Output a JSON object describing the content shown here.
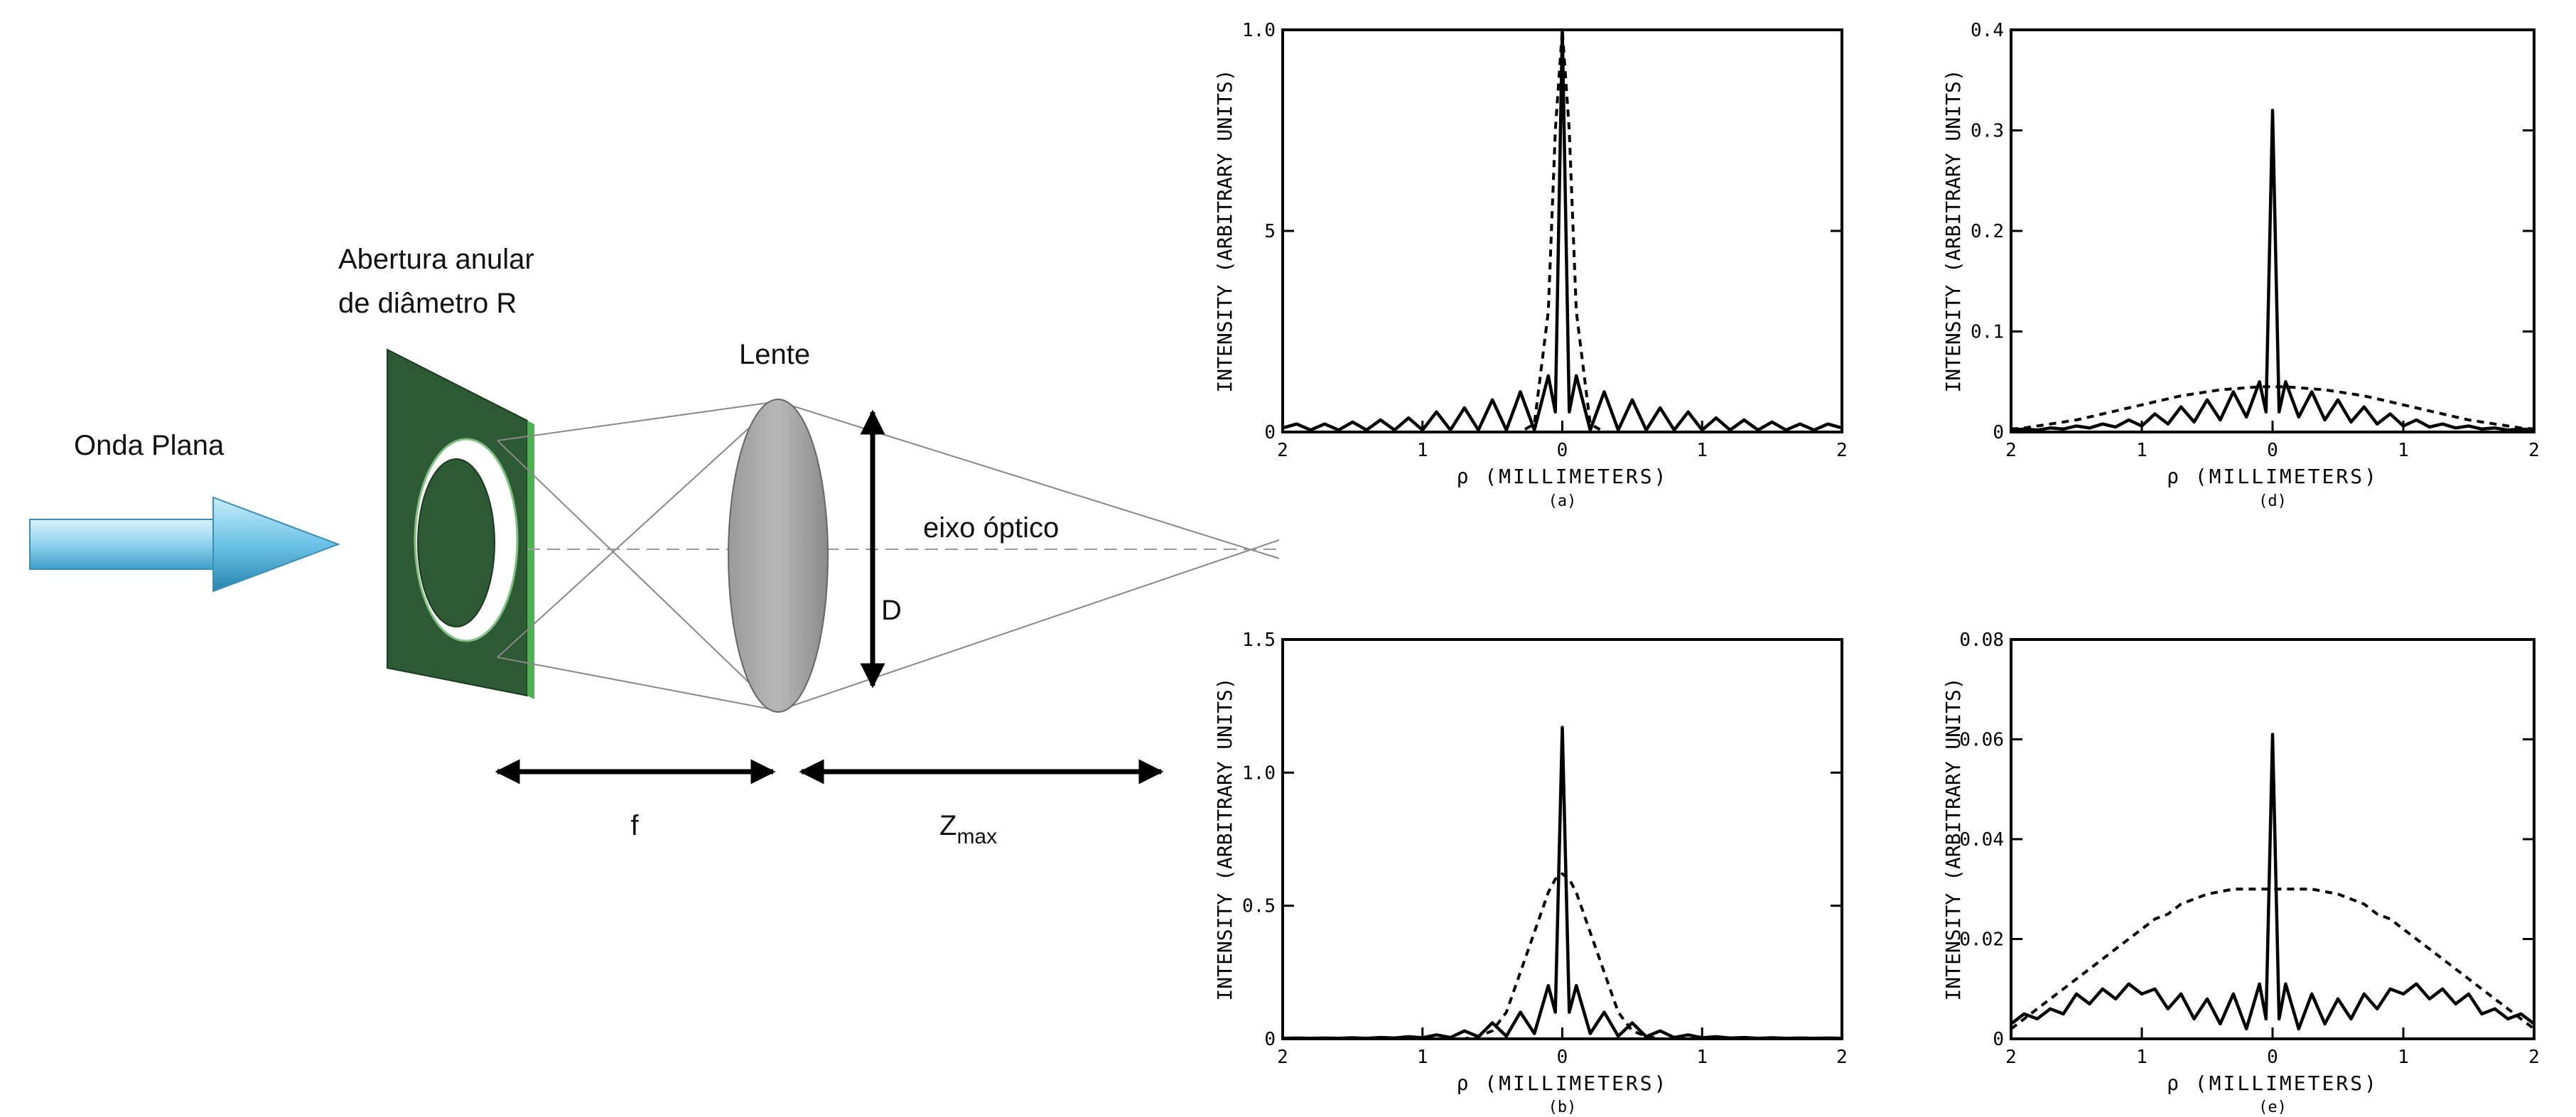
{
  "diagram": {
    "wave_label": "Onda Plana",
    "aperture_label": [
      "Abertura anular",
      "de diâmetro R"
    ],
    "lens_label": "Lente",
    "diameter_label": "D",
    "axis_label": "eixo óptico",
    "focal_label": "f",
    "zmax_label": "Z",
    "zmax_subscript": "max"
  },
  "chart_data": [
    {
      "type": "line",
      "caption": "(a)",
      "x_label": "ρ (MILLIMETERS)",
      "y_label": "INTENSITY (ARBITRARY UNITS)",
      "x": [
        -2,
        -1.9,
        -1.8,
        -1.7,
        -1.6,
        -1.5,
        -1.4,
        -1.3,
        -1.2,
        -1.1,
        -1,
        -0.9,
        -0.8,
        -0.7,
        -0.6,
        -0.5,
        -0.4,
        -0.3,
        -0.2,
        -0.1,
        -0.05,
        0,
        0.05,
        0.1,
        0.2,
        0.3,
        0.4,
        0.5,
        0.6,
        0.7,
        0.8,
        0.9,
        1,
        1.1,
        1.2,
        1.3,
        1.4,
        1.5,
        1.6,
        1.7,
        1.8,
        1.9,
        2
      ],
      "series": [
        {
          "color": "#000000",
          "dashed": false,
          "values": [
            0.01,
            0.02,
            0.005,
            0.02,
            0.005,
            0.025,
            0.005,
            0.03,
            0.005,
            0.035,
            0.005,
            0.05,
            0.005,
            0.06,
            0.005,
            0.08,
            0.005,
            0.1,
            0.005,
            0.14,
            0.05,
            1.0,
            0.05,
            0.14,
            0.005,
            0.1,
            0.005,
            0.08,
            0.005,
            0.06,
            0.005,
            0.05,
            0.005,
            0.035,
            0.005,
            0.03,
            0.005,
            0.025,
            0.005,
            0.02,
            0.005,
            0.02,
            0.01
          ]
        },
        {
          "color": "#000000",
          "dashed": true,
          "values": [
            0,
            0,
            0,
            0,
            0,
            0,
            0,
            0,
            0,
            0,
            0,
            0,
            0,
            0,
            0,
            0,
            0,
            0,
            0.02,
            0.3,
            0.75,
            1.0,
            0.75,
            0.3,
            0.02,
            0,
            0,
            0,
            0,
            0,
            0,
            0,
            0,
            0,
            0,
            0,
            0,
            0,
            0,
            0,
            0,
            0,
            0
          ]
        }
      ],
      "xlim": [
        -2,
        2
      ],
      "ylim": [
        0,
        1
      ],
      "xticks": [
        {
          "value": -2,
          "label": "2"
        },
        {
          "value": -1,
          "label": "1"
        },
        0,
        1,
        2
      ],
      "yticks": [
        0,
        {
          "value": 0.5,
          "label": "5"
        },
        {
          "value": 1,
          "label": "1.0"
        }
      ]
    },
    {
      "type": "line",
      "caption": "(b)",
      "x_label": "ρ (MILLIMETERS)",
      "y_label": "INTENSITY (ARBITRARY UNITS)",
      "x": [
        -2,
        -1.9,
        -1.8,
        -1.7,
        -1.6,
        -1.5,
        -1.4,
        -1.3,
        -1.2,
        -1.1,
        -1,
        -0.9,
        -0.8,
        -0.7,
        -0.6,
        -0.5,
        -0.4,
        -0.3,
        -0.2,
        -0.1,
        -0.05,
        0,
        0.05,
        0.1,
        0.2,
        0.3,
        0.4,
        0.5,
        0.6,
        0.7,
        0.8,
        0.9,
        1,
        1.1,
        1.2,
        1.3,
        1.4,
        1.5,
        1.6,
        1.7,
        1.8,
        1.9,
        2
      ],
      "series": [
        {
          "color": "#000000",
          "dashed": false,
          "values": [
            0.002,
            0.003,
            0.002,
            0.003,
            0.002,
            0.004,
            0.002,
            0.005,
            0.003,
            0.008,
            0.004,
            0.015,
            0.005,
            0.03,
            0.008,
            0.06,
            0.01,
            0.1,
            0.02,
            0.2,
            0.1,
            1.17,
            0.1,
            0.2,
            0.02,
            0.1,
            0.01,
            0.06,
            0.008,
            0.03,
            0.005,
            0.015,
            0.004,
            0.008,
            0.003,
            0.005,
            0.002,
            0.004,
            0.002,
            0.003,
            0.002,
            0.003,
            0.002
          ]
        },
        {
          "color": "#000000",
          "dashed": true,
          "values": [
            0,
            0,
            0,
            0,
            0,
            0,
            0,
            0,
            0,
            0,
            0,
            0,
            0,
            0,
            0.01,
            0.03,
            0.1,
            0.25,
            0.4,
            0.55,
            0.6,
            0.62,
            0.6,
            0.55,
            0.4,
            0.25,
            0.1,
            0.03,
            0.01,
            0,
            0,
            0,
            0,
            0,
            0,
            0,
            0,
            0,
            0,
            0,
            0,
            0,
            0
          ]
        }
      ],
      "xlim": [
        -2,
        2
      ],
      "ylim": [
        0,
        1.5
      ],
      "xticks": [
        {
          "value": -2,
          "label": "2"
        },
        {
          "value": -1,
          "label": "1"
        },
        0,
        1,
        2
      ],
      "yticks": [
        0,
        0.5,
        {
          "value": 1,
          "label": "1.0"
        },
        1.5
      ]
    },
    {
      "type": "line",
      "caption": "(d)",
      "x_label": "ρ (MILLIMETERS)",
      "y_label": "INTENSITY (ARBITRARY UNITS)",
      "x": [
        -2,
        -1.9,
        -1.8,
        -1.7,
        -1.6,
        -1.5,
        -1.4,
        -1.3,
        -1.2,
        -1.1,
        -1,
        -0.9,
        -0.8,
        -0.7,
        -0.6,
        -0.5,
        -0.4,
        -0.3,
        -0.2,
        -0.1,
        -0.05,
        0,
        0.05,
        0.1,
        0.2,
        0.3,
        0.4,
        0.5,
        0.6,
        0.7,
        0.8,
        0.9,
        1,
        1.1,
        1.2,
        1.3,
        1.4,
        1.5,
        1.6,
        1.7,
        1.8,
        1.9,
        2
      ],
      "series": [
        {
          "color": "#000000",
          "dashed": false,
          "values": [
            0.002,
            0.003,
            0.002,
            0.004,
            0.003,
            0.006,
            0.004,
            0.008,
            0.005,
            0.012,
            0.006,
            0.018,
            0.008,
            0.025,
            0.01,
            0.032,
            0.012,
            0.04,
            0.015,
            0.05,
            0.02,
            0.32,
            0.02,
            0.05,
            0.015,
            0.04,
            0.012,
            0.032,
            0.01,
            0.025,
            0.008,
            0.018,
            0.006,
            0.012,
            0.005,
            0.008,
            0.004,
            0.006,
            0.003,
            0.004,
            0.002,
            0.003,
            0.002
          ]
        },
        {
          "color": "#000000",
          "dashed": true,
          "values": [
            0.003,
            0.004,
            0.006,
            0.008,
            0.01,
            0.012,
            0.015,
            0.018,
            0.021,
            0.024,
            0.027,
            0.03,
            0.033,
            0.036,
            0.038,
            0.04,
            0.042,
            0.043,
            0.044,
            0.045,
            0.045,
            0.045,
            0.045,
            0.045,
            0.044,
            0.043,
            0.042,
            0.04,
            0.038,
            0.036,
            0.033,
            0.03,
            0.027,
            0.024,
            0.021,
            0.018,
            0.015,
            0.012,
            0.01,
            0.008,
            0.006,
            0.004,
            0.003
          ]
        }
      ],
      "xlim": [
        -2,
        2
      ],
      "ylim": [
        0,
        0.4
      ],
      "xticks": [
        {
          "value": -2,
          "label": "2"
        },
        {
          "value": -1,
          "label": "1"
        },
        0,
        1,
        2
      ],
      "yticks": [
        0,
        0.1,
        0.2,
        0.3,
        0.4
      ]
    },
    {
      "type": "line",
      "caption": "(e)",
      "x_label": "ρ (MILLIMETERS)",
      "y_label": "INTENSITY (ARBITRARY UNITS)",
      "x": [
        -2,
        -1.9,
        -1.8,
        -1.7,
        -1.6,
        -1.5,
        -1.4,
        -1.3,
        -1.2,
        -1.1,
        -1,
        -0.9,
        -0.8,
        -0.7,
        -0.6,
        -0.5,
        -0.4,
        -0.3,
        -0.2,
        -0.1,
        -0.05,
        0,
        0.05,
        0.1,
        0.2,
        0.3,
        0.4,
        0.5,
        0.6,
        0.7,
        0.8,
        0.9,
        1,
        1.1,
        1.2,
        1.3,
        1.4,
        1.5,
        1.6,
        1.7,
        1.8,
        1.9,
        2
      ],
      "series": [
        {
          "color": "#000000",
          "dashed": false,
          "values": [
            0.003,
            0.005,
            0.004,
            0.006,
            0.005,
            0.009,
            0.007,
            0.01,
            0.008,
            0.011,
            0.009,
            0.01,
            0.006,
            0.009,
            0.004,
            0.008,
            0.003,
            0.009,
            0.002,
            0.011,
            0.004,
            0.061,
            0.004,
            0.011,
            0.002,
            0.009,
            0.003,
            0.008,
            0.004,
            0.009,
            0.006,
            0.01,
            0.009,
            0.011,
            0.008,
            0.01,
            0.007,
            0.009,
            0.005,
            0.006,
            0.004,
            0.005,
            0.003
          ]
        },
        {
          "color": "#000000",
          "dashed": true,
          "values": [
            0.002,
            0.004,
            0.006,
            0.008,
            0.01,
            0.012,
            0.014,
            0.016,
            0.018,
            0.02,
            0.022,
            0.024,
            0.025,
            0.027,
            0.028,
            0.029,
            0.0295,
            0.03,
            0.03,
            0.03,
            0.03,
            0.03,
            0.03,
            0.03,
            0.03,
            0.03,
            0.0295,
            0.029,
            0.028,
            0.027,
            0.025,
            0.024,
            0.022,
            0.02,
            0.018,
            0.016,
            0.014,
            0.012,
            0.01,
            0.008,
            0.006,
            0.004,
            0.002
          ]
        }
      ],
      "xlim": [
        -2,
        2
      ],
      "ylim": [
        0,
        0.08
      ],
      "xticks": [
        {
          "value": -2,
          "label": "2"
        },
        {
          "value": -1,
          "label": "1"
        },
        0,
        1,
        2
      ],
      "yticks": [
        0,
        0.02,
        0.04,
        0.06,
        0.08
      ]
    }
  ]
}
